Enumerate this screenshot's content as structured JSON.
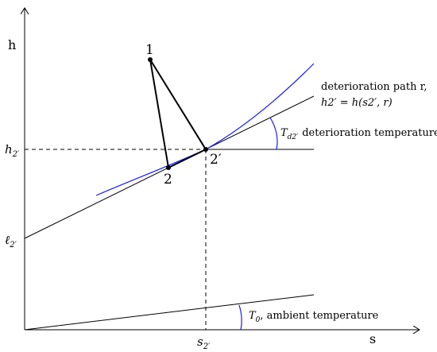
{
  "axes": {
    "x_label": "s",
    "y_label": "h"
  },
  "points": {
    "p1": "1",
    "p2": "2",
    "p2prime": "2′"
  },
  "labels": {
    "h2prime_base": "h",
    "h2prime_sub": "2′",
    "l2prime_base": "ℓ",
    "l2prime_sub": "2′",
    "s2prime_base": "s",
    "s2prime_sub": "2′",
    "path_line1": "deterioration path r,",
    "path_line2": "h2′ = h(s2′, r)",
    "deterioration_T": "T",
    "deterioration_T_sub": "d2′",
    "deterioration_text": "deterioration temperature",
    "ambient_T": "T",
    "ambient_T_sub": "0",
    "ambient_text": ", ambient temperature"
  },
  "colors": {
    "ink": "#000000",
    "accent": "#1a1aff"
  }
}
